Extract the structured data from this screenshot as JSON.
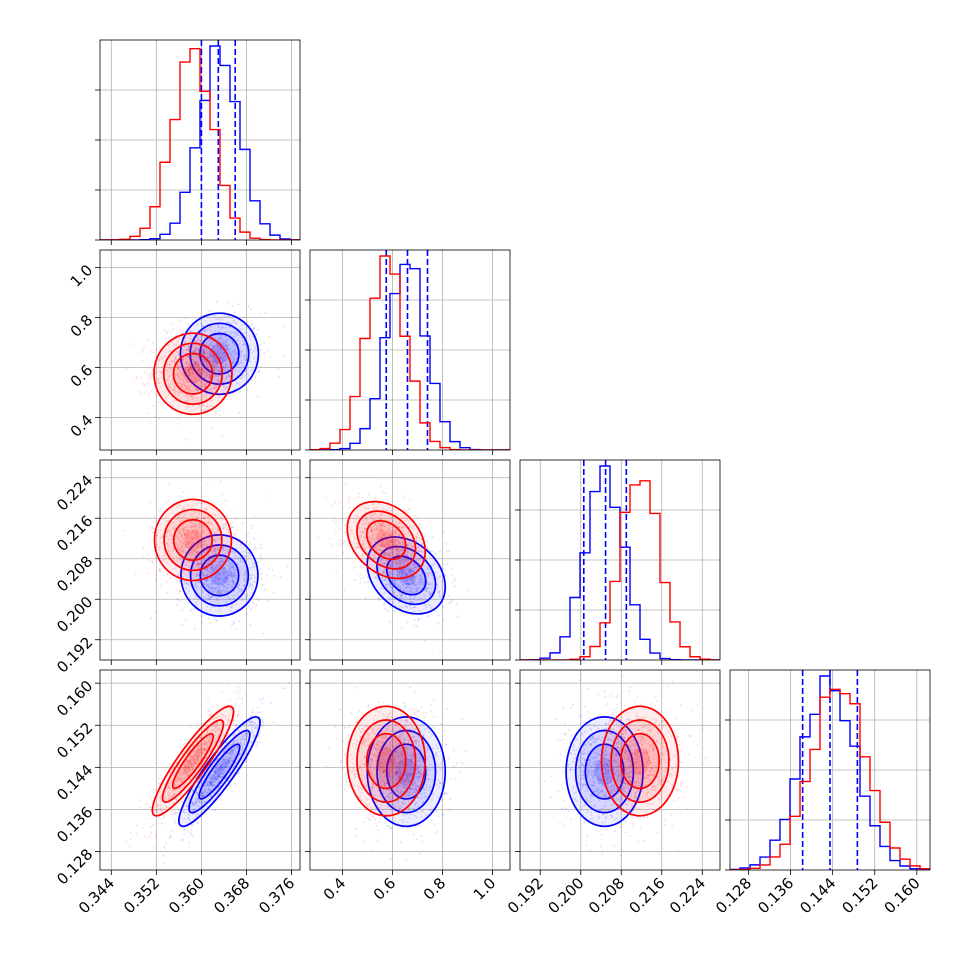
{
  "chart_data": {
    "type": "corner",
    "grid": true,
    "colors": {
      "blue": "#0000ff",
      "red": "#ff0000",
      "grid": "#b0b0b0"
    },
    "parameters": [
      {
        "xlim": [
          0.342,
          0.3775
        ],
        "ticks": [
          "0.344",
          "0.352",
          "0.360",
          "0.368",
          "0.376"
        ],
        "tick_values": [
          0.344,
          0.352,
          0.36,
          0.368,
          0.376
        ]
      },
      {
        "xlim": [
          0.27,
          1.07
        ],
        "ticks": [
          "0.4",
          "0.6",
          "0.8",
          "1.0"
        ],
        "tick_values": [
          0.4,
          0.6,
          0.8,
          1.0
        ]
      },
      {
        "xlim": [
          0.188,
          0.2275
        ],
        "ticks": [
          "0.192",
          "0.200",
          "0.208",
          "0.216",
          "0.224"
        ],
        "tick_values": [
          0.192,
          0.2,
          0.208,
          0.216,
          0.224
        ]
      },
      {
        "xlim": [
          0.1245,
          0.1625
        ],
        "ticks": [
          "0.128",
          "0.136",
          "0.144",
          "0.152",
          "0.160"
        ],
        "tick_values": [
          0.128,
          0.136,
          0.144,
          0.152,
          0.16
        ]
      }
    ],
    "y_axis_labels": {
      "row1": {
        "ticks": [
          "0.4",
          "0.6",
          "0.8",
          "1.0"
        ],
        "tick_values": [
          0.4,
          0.6,
          0.8,
          1.0
        ]
      },
      "row2": {
        "ticks": [
          "0.192",
          "0.200",
          "0.208",
          "0.216",
          "0.224"
        ],
        "tick_values": [
          0.192,
          0.2,
          0.208,
          0.216,
          0.224
        ]
      },
      "row3": {
        "ticks": [
          "0.128",
          "0.136",
          "0.144",
          "0.152",
          "0.160"
        ],
        "tick_values": [
          0.128,
          0.136,
          0.144,
          0.152,
          0.16
        ]
      }
    },
    "series": [
      {
        "color": "blue",
        "mean": [
          0.3632,
          0.655,
          0.2047,
          0.1432
        ],
        "sd": [
          0.0036,
          0.078,
          0.0038,
          0.0052
        ],
        "corr": [
          [
            1,
            0,
            0,
            0.9
          ],
          [
            0,
            1,
            -0.3,
            0
          ],
          [
            0,
            -0.3,
            1,
            0
          ],
          [
            0.9,
            0,
            0,
            1
          ]
        ],
        "quantiles": [
          [
            0.36,
            0.363,
            0.366
          ],
          [
            0.575,
            0.66,
            0.74
          ],
          [
            0.2006,
            0.2049,
            0.209
          ],
          [
            0.1383,
            0.1435,
            0.1487
          ]
        ],
        "hist_y_ticks": [
          "",
          "",
          "",
          ""
        ]
      },
      {
        "color": "red",
        "mean": [
          0.3585,
          0.575,
          0.2117,
          0.1452
        ],
        "sd": [
          0.0036,
          0.078,
          0.0038,
          0.0052
        ],
        "corr": [
          [
            1,
            0,
            0,
            0.9
          ],
          [
            0,
            1,
            -0.3,
            0
          ],
          [
            0,
            -0.3,
            1,
            0
          ],
          [
            0.9,
            0,
            0,
            1
          ]
        ],
        "quantiles": null,
        "hist_y_ticks": [
          "",
          "",
          "",
          ""
        ]
      }
    ]
  }
}
